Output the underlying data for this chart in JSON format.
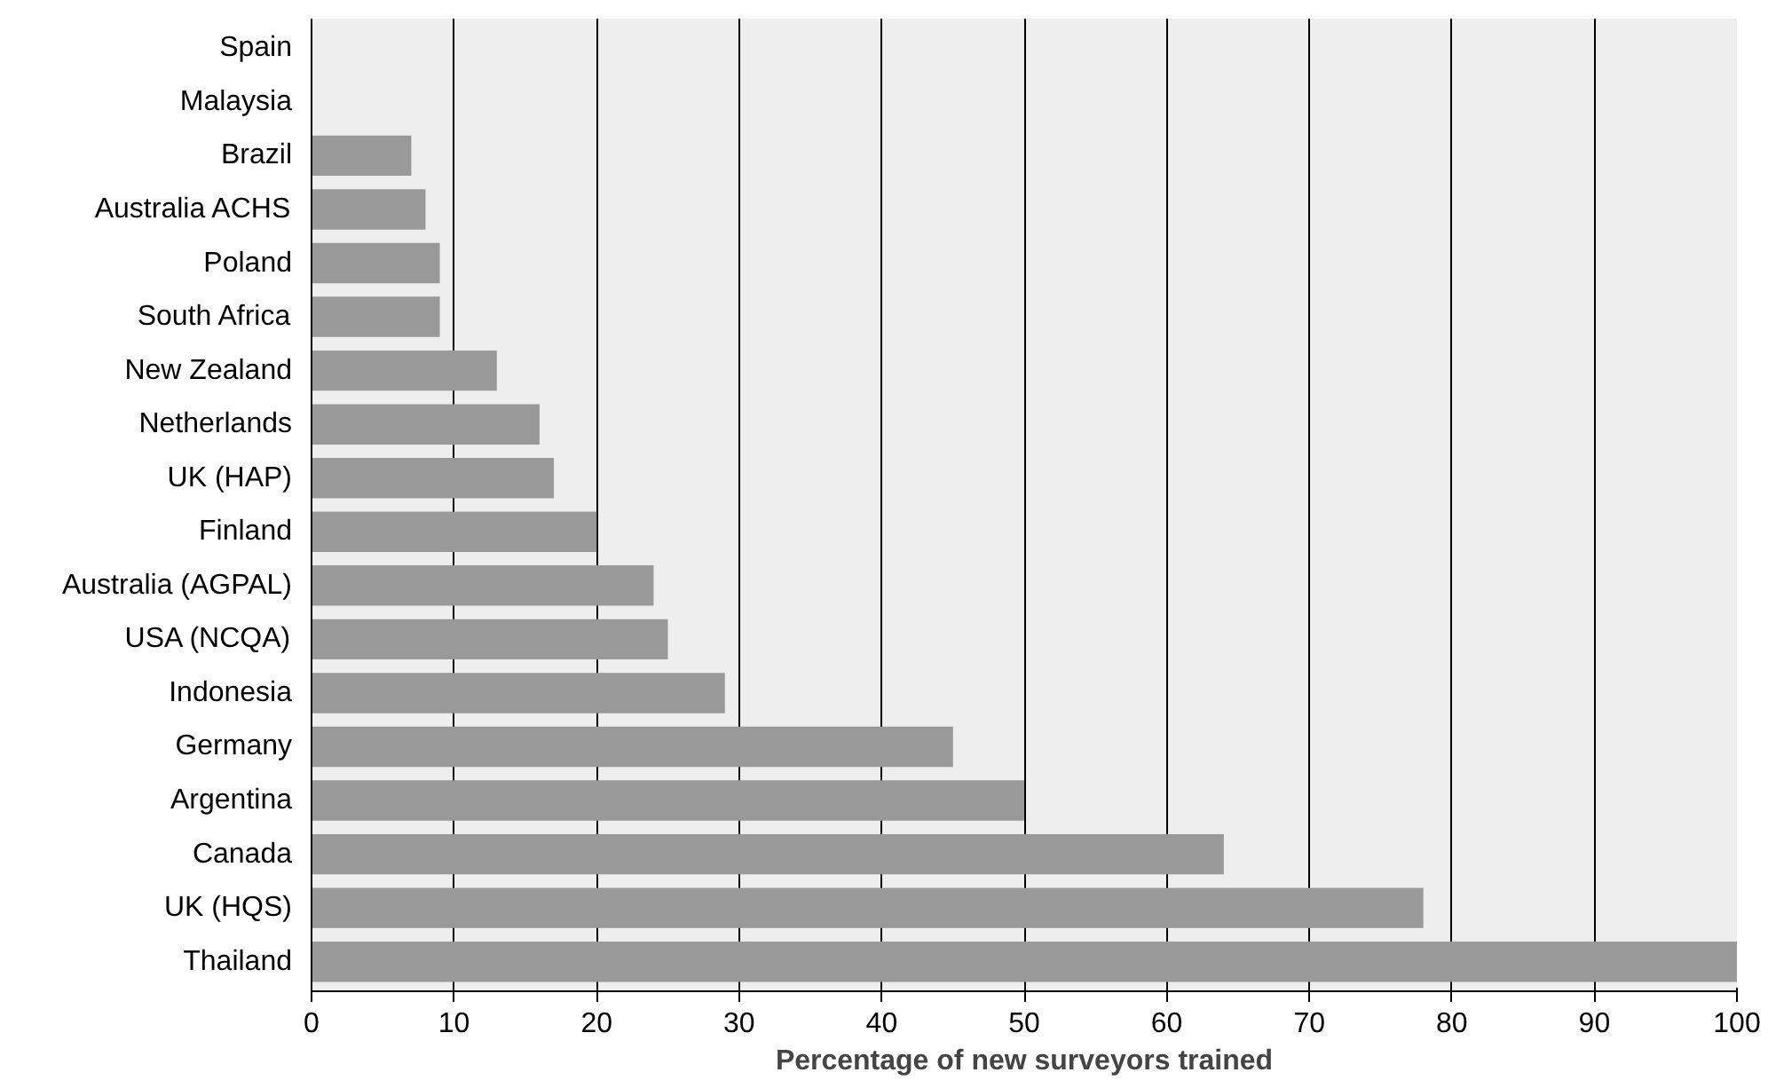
{
  "chart_data": {
    "type": "bar",
    "orientation": "horizontal",
    "xlabel": "Percentage of new surveyors trained",
    "categories": [
      "Spain",
      "Malaysia",
      "Brazil",
      "Australia ACHS",
      "Poland",
      "South Africa",
      "New Zealand",
      "Netherlands",
      "UK (HAP)",
      "Finland",
      "Australia (AGPAL)",
      "USA (NCQA)",
      "Indonesia",
      "Germany",
      "Argentina",
      "Canada",
      "UK (HQS)",
      "Thailand"
    ],
    "values": [
      0,
      0,
      7,
      8,
      9,
      9,
      13,
      16,
      17,
      20,
      24,
      25,
      29,
      45,
      50,
      64,
      78,
      100
    ],
    "color": "#999999",
    "xlim": [
      0,
      100
    ],
    "xticks": [
      0,
      10,
      20,
      30,
      40,
      50,
      60,
      70,
      80,
      90,
      100
    ],
    "grid": "x"
  }
}
